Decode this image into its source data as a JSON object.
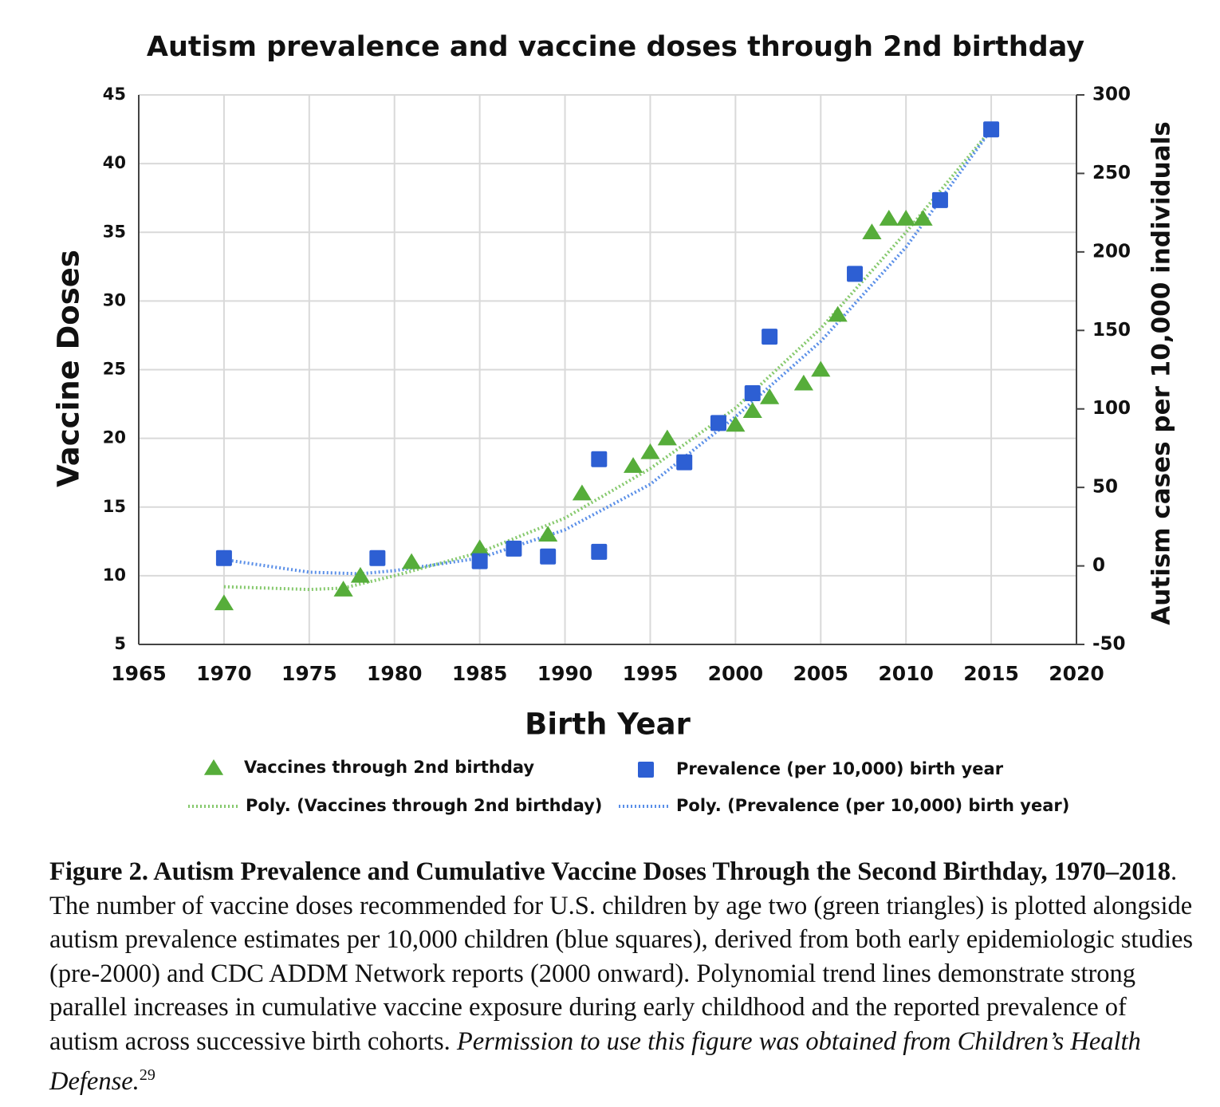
{
  "chart_data": {
    "type": "scatter",
    "title": "Autism prevalence and vaccine doses through 2nd birthday",
    "x_label": "Birth Year",
    "y_label": "Vaccine Doses",
    "y2_label": "Autism cases per 10,000 individuals",
    "xlim": [
      1965,
      2020
    ],
    "xticks": [
      1965,
      1970,
      1975,
      1980,
      1985,
      1990,
      1995,
      2000,
      2005,
      2010,
      2015,
      2020
    ],
    "ylim": [
      5,
      45
    ],
    "yticks": [
      5,
      10,
      15,
      20,
      25,
      30,
      35,
      40,
      45
    ],
    "y2lim": [
      -50,
      300
    ],
    "y2ticks": [
      -50,
      0,
      50,
      100,
      150,
      200,
      250,
      300
    ],
    "grid": true,
    "legend": "bottom",
    "series": [
      {
        "name": "Vaccines through 2nd birthday",
        "color": "#56ad3a",
        "marker": "triangle",
        "x": [
          1970,
          1977,
          1978,
          1981,
          1985,
          1989,
          1991,
          1994,
          1995,
          1996,
          2000,
          2001,
          2002,
          2004,
          2005,
          2006,
          2008,
          2009,
          2010,
          2011
        ],
        "values": [
          8,
          9,
          10,
          11,
          12,
          13,
          16,
          18,
          19,
          20,
          21,
          22,
          23,
          24,
          25,
          29,
          35,
          36,
          36,
          36
        ]
      },
      {
        "name": "Prevalence (per 10,000) birth year",
        "color": "#2d5fd3",
        "marker": "square",
        "axis": "y2",
        "x": [
          1970,
          1979,
          1985,
          1987,
          1989,
          1992,
          1992,
          1997,
          1999,
          2001,
          2002,
          2007,
          2012,
          2015
        ],
        "values": [
          5,
          5,
          3,
          11,
          6,
          68,
          9,
          66,
          91,
          110,
          146,
          186,
          233,
          278
        ]
      },
      {
        "name": "Poly. (Vaccines through 2nd birthday)",
        "color": "#86c96d",
        "marker": "dotted-line",
        "x": [
          1970,
          1975,
          1977,
          1980,
          1985,
          1990,
          1995,
          2000,
          2005,
          2010,
          2015
        ],
        "values": [
          9.2,
          9.0,
          9.1,
          10.0,
          11.7,
          14.2,
          17.8,
          22.2,
          28,
          35,
          42.5
        ]
      },
      {
        "name": "Poly. (Prevalence (per 10,000) birth year)",
        "color": "#5a8fe8",
        "marker": "dotted-line",
        "axis": "y2",
        "x": [
          1970,
          1975,
          1978,
          1980,
          1985,
          1990,
          1995,
          2000,
          2005,
          2010,
          2015
        ],
        "values": [
          4,
          -4,
          -5,
          -3,
          5,
          23,
          52,
          95,
          143,
          203,
          278
        ]
      }
    ]
  },
  "caption": {
    "bold": "Figure 2. Autism Prevalence and Cumulative Vaccine Doses Through the Second Birthday, 1970–2018",
    "text": ". The number of vaccine doses recommended for U.S. children by age two (green triangles) is plotted alongside autism prevalence estimates per 10,000 children (blue squares), derived from both early epidemiologic studies (pre-2000) and CDC ADDM Network reports (2000 onward). Polynomial trend lines demonstrate strong parallel increases in cumulative vaccine exposure during early childhood and the reported prevalence of autism across successive birth cohorts. ",
    "italic": "Permission to use this figure was obtained from Children’s Health Defense.",
    "ref": "29"
  }
}
